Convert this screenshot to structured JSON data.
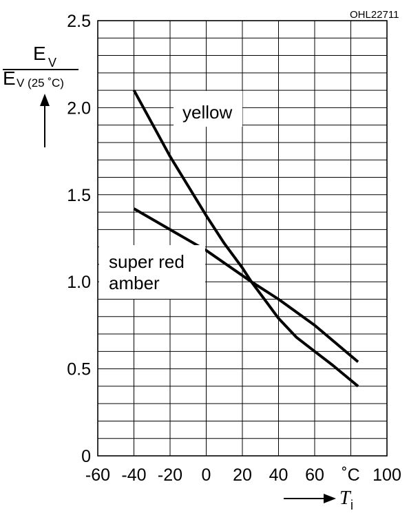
{
  "figure_code": "OHL22711",
  "colors": {
    "background": "#ffffff",
    "grid": "#000000",
    "curve": "#000000",
    "text": "#000000"
  },
  "chart_data": {
    "type": "line",
    "ylabel": {
      "numerator_main": "E",
      "numerator_sub": "V",
      "denominator_main": "E",
      "denominator_sub": "V (25 ˚C)"
    },
    "xlabel": {
      "main": "T",
      "sub": "j"
    },
    "x_unit_label": "˚C",
    "xlim": [
      -60,
      100
    ],
    "ylim": [
      0,
      2.5
    ],
    "x_ticks": [
      {
        "value": -60,
        "label": "-60"
      },
      {
        "value": -40,
        "label": "-40"
      },
      {
        "value": -20,
        "label": "-20"
      },
      {
        "value": 0,
        "label": "0"
      },
      {
        "value": 20,
        "label": "20"
      },
      {
        "value": 40,
        "label": "40"
      },
      {
        "value": 60,
        "label": "60"
      },
      {
        "value": 100,
        "label": "100"
      }
    ],
    "y_ticks": [
      {
        "value": 0,
        "label": "0"
      },
      {
        "value": 0.5,
        "label": "0.5"
      },
      {
        "value": 1.0,
        "label": "1.0"
      },
      {
        "value": 1.5,
        "label": "1.5"
      },
      {
        "value": 2.0,
        "label": "2.0"
      },
      {
        "value": 2.5,
        "label": "2.5"
      }
    ],
    "x_grid_step": 20,
    "y_grid_step": 0.1,
    "grid": true,
    "series": [
      {
        "name": "yellow",
        "x": [
          -40,
          -30,
          -20,
          -10,
          0,
          10,
          20,
          25,
          30,
          40,
          50,
          60,
          70,
          84
        ],
        "y": [
          2.1,
          1.91,
          1.72,
          1.55,
          1.38,
          1.22,
          1.08,
          1.0,
          0.93,
          0.79,
          0.68,
          0.6,
          0.52,
          0.4
        ]
      },
      {
        "name": "super red\namber",
        "x": [
          -40,
          -20,
          0,
          25,
          40,
          60,
          84
        ],
        "y": [
          1.42,
          1.3,
          1.18,
          1.0,
          0.9,
          0.75,
          0.54
        ]
      }
    ]
  }
}
